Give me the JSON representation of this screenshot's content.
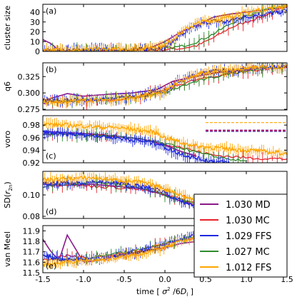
{
  "chart_data": {
    "type": "line",
    "x_range": [
      -1.5,
      1.5
    ],
    "x_ticks": [
      "-1.5",
      "-1.0",
      "-0.5",
      "0.0",
      "0.5",
      "1.0",
      "1.5"
    ],
    "xlabel_parts": [
      "time [ ",
      "σ",
      "2",
      " /6",
      "D",
      "l",
      " ]"
    ],
    "legend_position": "lower-right",
    "series_styles": [
      {
        "name": "1.030 MD",
        "color": "#8b1a8b"
      },
      {
        "name": "1.030 MC",
        "color": "#e8222a"
      },
      {
        "name": "1.029 FFS",
        "color": "#1f28e0"
      },
      {
        "name": "1.027 MC",
        "color": "#2e8b2e"
      },
      {
        "name": "1.012 FFS",
        "color": "#ffa500"
      }
    ],
    "panels": [
      {
        "tag": "(a)",
        "ylabel": "cluster size",
        "ylim": [
          0,
          48
        ],
        "yticks": [
          0,
          10,
          20,
          30,
          40
        ],
        "ytick_labels": [
          "0",
          "10",
          "20",
          "30",
          "40"
        ],
        "series": [
          {
            "name": "1.030 MD",
            "x": [
              -1.5,
              -1.4,
              -1.3,
              -1.2,
              -1.0,
              -0.6,
              -0.2,
              0.0,
              0.2,
              0.4,
              0.6,
              0.8,
              1.0,
              1.2,
              1.4,
              1.5
            ],
            "y": [
              12,
              8,
              1,
              0,
              0,
              1,
              3,
              10,
              20,
              27,
              35,
              38,
              40,
              42,
              44,
              45
            ]
          },
          {
            "name": "1.030 MC",
            "x": [
              -1.5,
              -1.2,
              -0.9,
              -0.6,
              -0.3,
              0.0,
              0.2,
              0.4,
              0.6,
              0.8,
              1.0,
              1.2,
              1.4,
              1.5
            ],
            "y": [
              1,
              0,
              0,
              1,
              1,
              2,
              3,
              6,
              14,
              24,
              30,
              36,
              42,
              45
            ]
          },
          {
            "name": "1.029 FFS",
            "x": [
              -1.5,
              -1.2,
              -0.9,
              -0.6,
              -0.3,
              0.0,
              0.15,
              0.3,
              0.45,
              0.6,
              0.75,
              0.9,
              1.05,
              1.2,
              1.4,
              1.5
            ],
            "y": [
              1,
              1,
              2,
              2,
              2,
              4,
              14,
              22,
              28,
              31,
              30,
              34,
              36,
              38,
              40,
              42
            ]
          },
          {
            "name": "1.027 MC",
            "x": [
              -1.5,
              -1.2,
              -0.9,
              -0.6,
              -0.3,
              0.0,
              0.2,
              0.4,
              0.6,
              0.8,
              1.0,
              1.2,
              1.4,
              1.5
            ],
            "y": [
              1,
              0,
              1,
              1,
              2,
              3,
              5,
              10,
              18,
              28,
              36,
              42,
              46,
              47
            ]
          },
          {
            "name": "1.012 FFS",
            "x": [
              -1.5,
              -1.2,
              -0.9,
              -0.6,
              -0.3,
              0.0,
              0.15,
              0.3,
              0.45,
              0.6,
              0.75,
              0.9,
              1.05,
              1.2,
              1.35,
              1.5
            ],
            "y": [
              2,
              1,
              2,
              2,
              3,
              6,
              16,
              25,
              30,
              32,
              34,
              38,
              40,
              43,
              45,
              46
            ]
          }
        ]
      },
      {
        "tag": "(b)",
        "ylabel": "q6",
        "ylim": [
          0.274,
          0.346
        ],
        "yticks": [
          0.275,
          0.3,
          0.325
        ],
        "ytick_labels": [
          "0.275",
          "0.300",
          "0.325"
        ],
        "series": [
          {
            "name": "1.030 MD",
            "x": [
              -1.5,
              -1.2,
              -1.0,
              -0.7,
              -0.4,
              -0.1,
              0.1,
              0.3,
              0.5,
              0.7,
              1.0,
              1.2,
              1.5
            ],
            "y": [
              0.288,
              0.299,
              0.295,
              0.298,
              0.3,
              0.305,
              0.318,
              0.323,
              0.328,
              0.332,
              0.335,
              0.338,
              0.34
            ]
          },
          {
            "name": "1.030 MC",
            "x": [
              -1.5,
              -1.2,
              -0.9,
              -0.6,
              -0.3,
              0.0,
              0.2,
              0.4,
              0.6,
              0.8,
              1.0,
              1.2,
              1.5
            ],
            "y": [
              0.285,
              0.286,
              0.288,
              0.29,
              0.295,
              0.304,
              0.314,
              0.32,
              0.325,
              0.33,
              0.333,
              0.336,
              0.339
            ]
          },
          {
            "name": "1.029 FFS",
            "x": [
              -1.5,
              -1.2,
              -0.9,
              -0.6,
              -0.3,
              0.0,
              0.15,
              0.3,
              0.45,
              0.6,
              0.8,
              1.0,
              1.2,
              1.5
            ],
            "y": [
              0.288,
              0.288,
              0.29,
              0.292,
              0.296,
              0.303,
              0.316,
              0.325,
              0.33,
              0.333,
              0.334,
              0.336,
              0.338,
              0.34
            ]
          },
          {
            "name": "1.027 MC",
            "x": [
              -1.5,
              -1.2,
              -0.9,
              -0.6,
              -0.3,
              0.0,
              0.2,
              0.4,
              0.6,
              0.8,
              1.0,
              1.2,
              1.5
            ],
            "y": [
              0.287,
              0.288,
              0.29,
              0.292,
              0.294,
              0.3,
              0.31,
              0.318,
              0.324,
              0.33,
              0.334,
              0.337,
              0.34
            ]
          },
          {
            "name": "1.012 FFS",
            "x": [
              -1.5,
              -1.2,
              -0.9,
              -0.6,
              -0.3,
              0.0,
              0.15,
              0.3,
              0.45,
              0.6,
              0.8,
              1.0,
              1.2,
              1.5
            ],
            "y": [
              0.286,
              0.287,
              0.289,
              0.29,
              0.294,
              0.302,
              0.315,
              0.324,
              0.33,
              0.333,
              0.335,
              0.337,
              0.339,
              0.34
            ]
          }
        ]
      },
      {
        "tag": "(c)",
        "ylabel": "voro",
        "ylim": [
          0.92,
          0.995
        ],
        "yticks": [
          0.92,
          0.94,
          0.96,
          0.98
        ],
        "ytick_labels": [
          "0.92",
          "0.94",
          "0.96",
          "0.98"
        ],
        "reference_lines": [
          {
            "color": "#1f28e0",
            "x_from": 0.5,
            "y": 0.97
          },
          {
            "color": "#e8222a",
            "x_from": 0.5,
            "y": 0.971
          },
          {
            "color": "#8b1a8b",
            "x_from": 0.5,
            "y": 0.972
          },
          {
            "color": "#ffa500",
            "x_from": 0.5,
            "y": 0.984
          }
        ],
        "series": [
          {
            "name": "1.030 MD",
            "x": [
              -1.5,
              -1.2,
              -0.9,
              -0.6,
              -0.3,
              0.0,
              0.2,
              0.4
            ],
            "y": [
              0.97,
              0.968,
              0.966,
              0.962,
              0.958,
              0.948,
              0.938,
              0.93
            ]
          },
          {
            "name": "1.030 MC",
            "x": [
              -1.5,
              -1.2,
              -0.9,
              -0.6,
              -0.3,
              0.0,
              0.2,
              0.4,
              0.6,
              0.8,
              1.0,
              1.2,
              1.5
            ],
            "y": [
              0.965,
              0.966,
              0.965,
              0.962,
              0.958,
              0.95,
              0.945,
              0.938,
              0.932,
              0.93,
              0.928,
              0.927,
              0.926
            ]
          },
          {
            "name": "1.029 FFS",
            "x": [
              -1.5,
              -1.2,
              -0.9,
              -0.6,
              -0.3,
              -0.1,
              0.0,
              0.1,
              0.2,
              0.3,
              0.4,
              0.5,
              0.6,
              0.8
            ],
            "y": [
              0.968,
              0.966,
              0.964,
              0.96,
              0.955,
              0.951,
              0.945,
              0.938,
              0.934,
              0.93,
              0.927,
              0.924,
              0.922,
              0.92
            ]
          },
          {
            "name": "1.027 MC",
            "x": [
              -1.5,
              -1.2,
              -0.9,
              -0.6,
              -0.3,
              0.0,
              0.2,
              0.4,
              0.6,
              0.8,
              1.0
            ],
            "y": [
              0.966,
              0.965,
              0.964,
              0.962,
              0.957,
              0.95,
              0.944,
              0.936,
              0.93,
              0.926,
              0.922
            ]
          },
          {
            "name": "1.012 FFS",
            "x": [
              -1.5,
              -1.2,
              -0.9,
              -0.6,
              -0.3,
              -0.1,
              0.0,
              0.2,
              0.4,
              0.6,
              0.8,
              1.0,
              1.2,
              1.5
            ],
            "y": [
              0.982,
              0.98,
              0.978,
              0.976,
              0.972,
              0.968,
              0.96,
              0.952,
              0.946,
              0.944,
              0.942,
              0.94,
              0.938,
              0.935
            ]
          }
        ]
      },
      {
        "tag": "(d)",
        "ylabel_parts": [
          "SD(",
          "r",
          "2n",
          ")"
        ],
        "ylim": [
          0.078,
          0.122
        ],
        "yticks": [
          0.08,
          0.1
        ],
        "ytick_labels": [
          "0.08",
          "0.10"
        ],
        "series": [
          {
            "name": "1.030 MD",
            "x": [
              -1.5,
              -1.2,
              -0.9,
              -0.6,
              -0.3,
              0.0,
              0.2,
              0.4
            ],
            "y": [
              0.11,
              0.109,
              0.11,
              0.108,
              0.106,
              0.1,
              0.094,
              0.09
            ]
          },
          {
            "name": "1.030 MC",
            "x": [
              -1.5,
              -1.2,
              -0.9,
              -0.6,
              -0.3,
              0.0,
              0.2,
              0.4,
              0.6
            ],
            "y": [
              0.108,
              0.11,
              0.108,
              0.107,
              0.105,
              0.1,
              0.096,
              0.092,
              0.09
            ]
          },
          {
            "name": "1.029 FFS",
            "x": [
              -1.5,
              -1.2,
              -0.9,
              -0.6,
              -0.3,
              0.0,
              0.1,
              0.2,
              0.3,
              0.4,
              0.5,
              0.6
            ],
            "y": [
              0.11,
              0.111,
              0.112,
              0.111,
              0.108,
              0.103,
              0.097,
              0.094,
              0.091,
              0.089,
              0.088,
              0.087
            ]
          },
          {
            "name": "1.027 MC",
            "x": [
              -1.5,
              -1.2,
              -0.9,
              -0.6,
              -0.3,
              0.0,
              0.2,
              0.4,
              0.6
            ],
            "y": [
              0.108,
              0.11,
              0.112,
              0.11,
              0.107,
              0.1,
              0.096,
              0.092,
              0.09
            ]
          },
          {
            "name": "1.012 FFS",
            "x": [
              -1.5,
              -1.2,
              -0.9,
              -0.6,
              -0.3,
              0.0,
              0.2,
              0.4,
              0.6,
              0.8
            ],
            "y": [
              0.114,
              0.115,
              0.116,
              0.114,
              0.112,
              0.106,
              0.1,
              0.094,
              0.092,
              0.09
            ]
          }
        ]
      },
      {
        "tag": "(e)",
        "ylabel": "van Meel",
        "ylim": [
          11.5,
          11.95
        ],
        "yticks": [
          11.5,
          11.6,
          11.7,
          11.8,
          11.9
        ],
        "ytick_labels": [
          "11.5",
          "11.6",
          "11.7",
          "11.8",
          "11.9"
        ],
        "series": [
          {
            "name": "1.030 MD",
            "x": [
              -1.5,
              -1.4,
              -1.3,
              -1.2,
              -1.0,
              -0.8,
              -0.6,
              -0.3,
              0.0,
              0.2,
              0.4
            ],
            "y": [
              11.82,
              11.7,
              11.62,
              11.86,
              11.6,
              11.62,
              11.66,
              11.7,
              11.74,
              11.78,
              11.8
            ]
          },
          {
            "name": "1.030 MC",
            "x": [
              -1.5,
              -1.2,
              -0.9,
              -0.6,
              -0.3,
              0.0,
              0.2,
              0.4,
              0.6
            ],
            "y": [
              11.62,
              11.66,
              11.64,
              11.68,
              11.72,
              11.78,
              11.82,
              11.84,
              11.85
            ]
          },
          {
            "name": "1.029 FFS",
            "x": [
              -1.5,
              -1.2,
              -0.9,
              -0.6,
              -0.3,
              0.0,
              0.1,
              0.2,
              0.3,
              0.4,
              0.5,
              0.6
            ],
            "y": [
              11.66,
              11.62,
              11.64,
              11.66,
              11.7,
              11.76,
              11.79,
              11.82,
              11.84,
              11.86,
              11.87,
              11.88
            ]
          },
          {
            "name": "1.027 MC",
            "x": [
              -1.5,
              -1.2,
              -0.9,
              -0.6,
              -0.3,
              0.0,
              0.2,
              0.4,
              0.6
            ],
            "y": [
              11.66,
              11.62,
              11.64,
              11.68,
              11.72,
              11.78,
              11.82,
              11.85,
              11.86
            ]
          },
          {
            "name": "1.012 FFS",
            "x": [
              -1.5,
              -1.2,
              -0.9,
              -0.6,
              -0.3,
              0.0,
              0.2,
              0.4,
              0.6,
              0.8,
              1.0,
              1.2,
              1.5
            ],
            "y": [
              11.58,
              11.6,
              11.62,
              11.64,
              11.68,
              11.74,
              11.8,
              11.84,
              11.86,
              11.87,
              11.88,
              11.89,
              11.9
            ]
          }
        ]
      }
    ]
  }
}
